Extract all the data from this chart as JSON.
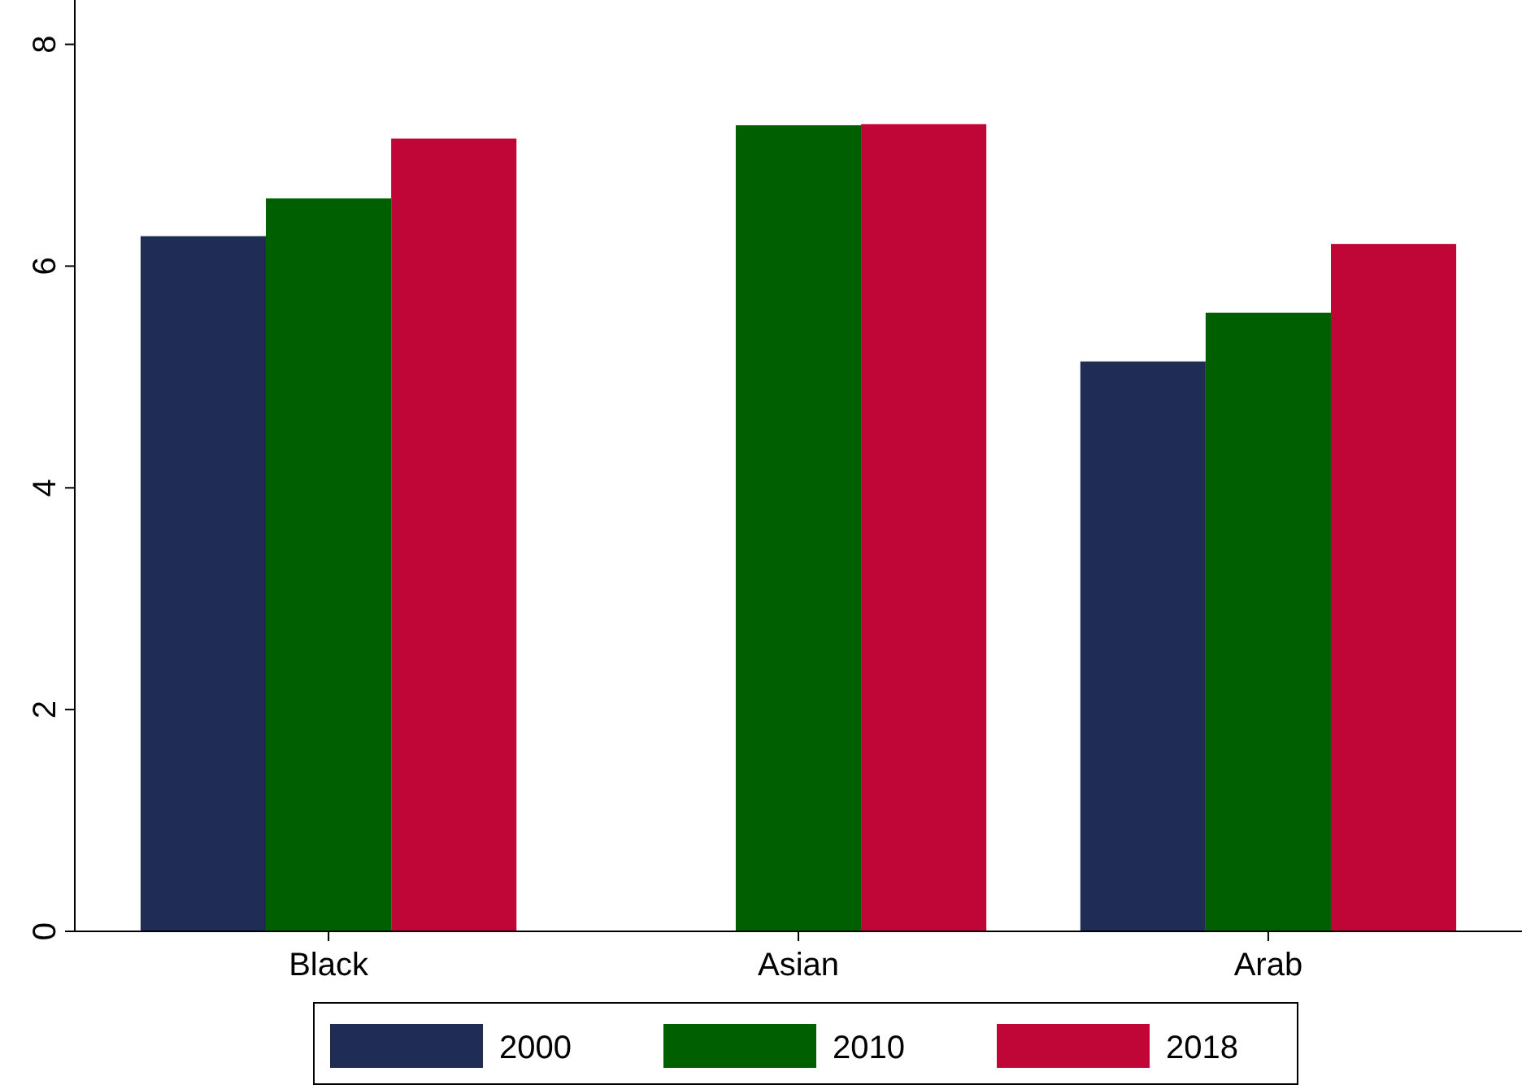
{
  "chart_data": {
    "type": "bar",
    "categories": [
      "Black",
      "Asian",
      "Arab"
    ],
    "series": [
      {
        "name": "2000",
        "color": "#1f2d55",
        "values": [
          6.27,
          null,
          5.14
        ]
      },
      {
        "name": "2010",
        "color": "#006000",
        "values": [
          6.61,
          7.27,
          5.58
        ]
      },
      {
        "name": "2018",
        "color": "#c00637",
        "values": [
          7.15,
          7.28,
          6.2
        ]
      }
    ],
    "ylim": [
      0,
      8.4
    ],
    "yticks": [
      0,
      2,
      4,
      6,
      8
    ],
    "grid": false,
    "legend": "bottom"
  }
}
